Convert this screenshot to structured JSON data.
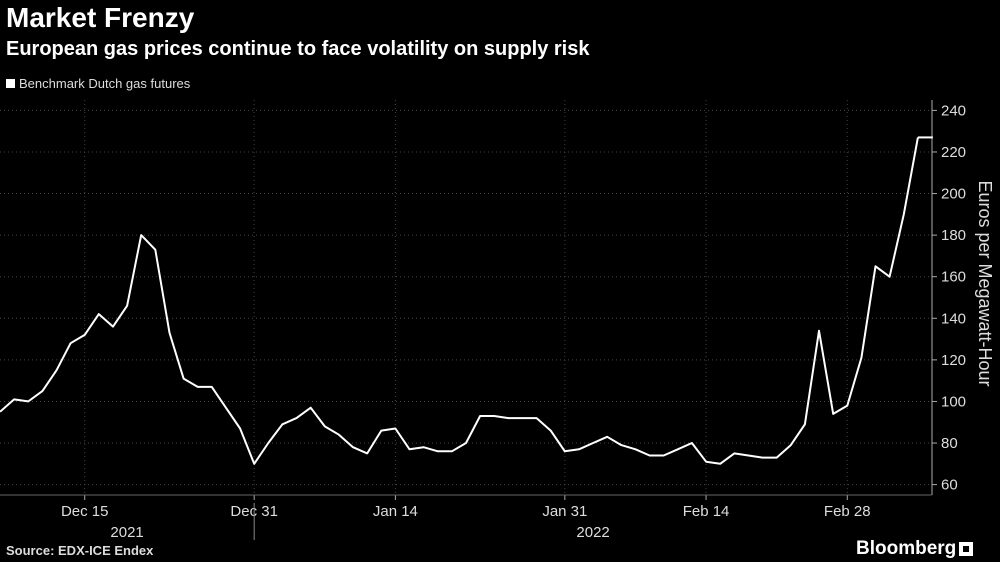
{
  "title": "Market Frenzy",
  "subtitle": "European gas prices continue to face volatility on supply risk",
  "source": "Source: EDX-ICE Endex",
  "brand": "Bloomberg",
  "chart_data": {
    "type": "line",
    "series": [
      {
        "name": "Benchmark Dutch gas futures",
        "color": "#ffffff",
        "x": [
          0,
          1,
          2,
          3,
          4,
          5,
          6,
          7,
          8,
          9,
          10,
          11,
          12,
          13,
          14,
          15,
          16,
          17,
          18,
          19,
          20,
          21,
          22,
          23,
          24,
          25,
          26,
          27,
          28,
          29,
          30,
          31,
          32,
          33,
          34,
          35,
          36,
          37,
          38,
          39,
          40,
          41,
          42,
          43,
          44,
          45,
          46,
          47,
          48,
          49,
          50,
          51,
          52,
          53,
          54,
          55,
          56,
          57,
          58,
          59,
          60,
          61,
          62,
          63,
          64,
          65
        ],
        "values": [
          95,
          101,
          100,
          105,
          115,
          128,
          132,
          142,
          136,
          146,
          180,
          173,
          133,
          111,
          107,
          107,
          97,
          87,
          70,
          80,
          89,
          92,
          97,
          88,
          84,
          78,
          75,
          86,
          87,
          77,
          78,
          76,
          76,
          80,
          93,
          93,
          92,
          92,
          92,
          86,
          76,
          77,
          80,
          83,
          79,
          77,
          74,
          74,
          77,
          80,
          71,
          70,
          75,
          74,
          73,
          73,
          79,
          89,
          134,
          94,
          98,
          121,
          165,
          160,
          190,
          227
        ],
        "last_value": 227
      }
    ],
    "categories": [
      "Dec 15",
      "Dec 31",
      "Jan 14",
      "Jan 31",
      "Feb 14",
      "Feb 28"
    ],
    "category_x": [
      6,
      18,
      28,
      40,
      50,
      60
    ],
    "group_labels": [
      "2021",
      "2022"
    ],
    "group_x": [
      9,
      42
    ],
    "group_divider_x": 18,
    "xlim": [
      0,
      66
    ],
    "ylabel": "Euros per Megawatt-Hour",
    "ylim": [
      55,
      245
    ],
    "yticks": [
      60,
      80,
      100,
      120,
      140,
      160,
      180,
      200,
      220,
      240
    ],
    "grid": true,
    "legend_position": "top-left"
  }
}
